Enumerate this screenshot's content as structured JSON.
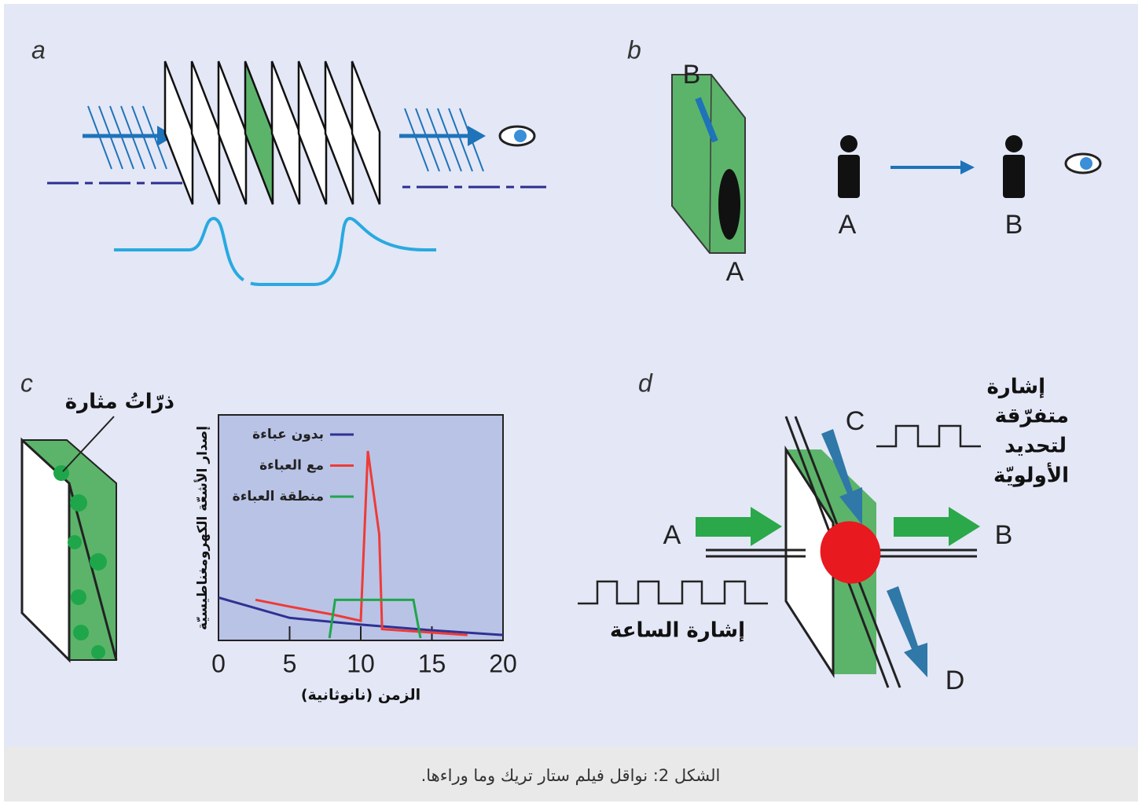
{
  "panel_labels": [
    "a",
    "b",
    "c",
    "d"
  ],
  "panel_b": {
    "slab_top": "B",
    "slab_bottom": "A",
    "person_left": "A",
    "person_right": "B"
  },
  "panel_c": {
    "annotation": "ذرّاتُ مثارة"
  },
  "panel_d": {
    "top": "C",
    "left": "A",
    "right": "B",
    "bottom": "D",
    "priority_signal": [
      "إشارة",
      "متفرّقة",
      "لتحديد",
      "الأولويّة"
    ],
    "clock_signal": "إشارة الساعة"
  },
  "chart_data": {
    "type": "line",
    "x_label": "الزمن (نانوثانية)",
    "y_label": "إصدار الأشعّة الكهرومغناطيسيّة",
    "xlim": [
      0,
      20
    ],
    "xticks": [
      0,
      5,
      10,
      15,
      20
    ],
    "ylim": [
      0,
      100
    ],
    "series": [
      {
        "name": "بدون عباءة",
        "color": "#2e3192",
        "x": [
          0,
          5,
          10,
          15,
          20
        ],
        "values": [
          19,
          10,
          7,
          4.5,
          2.4
        ]
      },
      {
        "name": "مع العباءة",
        "color": "#ee3b36",
        "x": [
          2.6,
          5,
          8,
          10,
          10.5,
          11.3,
          11.5,
          15,
          17.5
        ],
        "values": [
          18,
          15,
          11.5,
          8.7,
          84,
          47,
          5,
          3.5,
          2.4
        ]
      },
      {
        "name": "منطقة العباءة",
        "color": "#1fa64a",
        "x": [
          7.8,
          8.2,
          13.7,
          14.2
        ],
        "values": [
          1,
          18,
          18,
          1
        ]
      }
    ]
  },
  "caption": "الشكل 2: نواقل فيلم ستار تريك وما وراءها."
}
